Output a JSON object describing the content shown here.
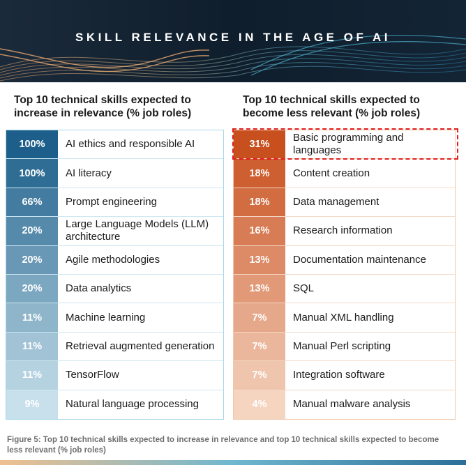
{
  "banner": {
    "title": "SKILL RELEVANCE IN THE AGE OF AI"
  },
  "chart_data": [
    {
      "type": "table",
      "title": "Top 10 technical skills expected to increase in relevance (% job roles)",
      "color": "#1d5f8a",
      "categories": [
        "AI ethics and responsible AI",
        "AI literacy",
        "Prompt engineering",
        "Large Language Models (LLM) architecture",
        "Agile methodologies",
        "Data analytics",
        "Machine learning",
        "Retrieval augmented generation",
        "TensorFlow",
        "Natural language processing"
      ],
      "values": [
        "100%",
        "100%",
        "66%",
        "20%",
        "20%",
        "20%",
        "11%",
        "11%",
        "11%",
        "9%"
      ]
    },
    {
      "type": "table",
      "title": "Top 10 technical skills expected to become less relevant (% job roles)",
      "color": "#c8501e",
      "categories": [
        "Basic programming and languages",
        "Content creation",
        "Data management",
        "Research information",
        "Documentation maintenance",
        "SQL",
        "Manual XML handling",
        "Manual Perl scripting",
        "Integration software",
        "Manual malware analysis"
      ],
      "values": [
        "31%",
        "18%",
        "18%",
        "16%",
        "13%",
        "13%",
        "7%",
        "7%",
        "7%",
        "4%"
      ]
    }
  ],
  "caption": "Figure 5: Top 10 technical skills expected to increase in relevance and top 10 technical skills expected to become less relevant (% job roles)"
}
